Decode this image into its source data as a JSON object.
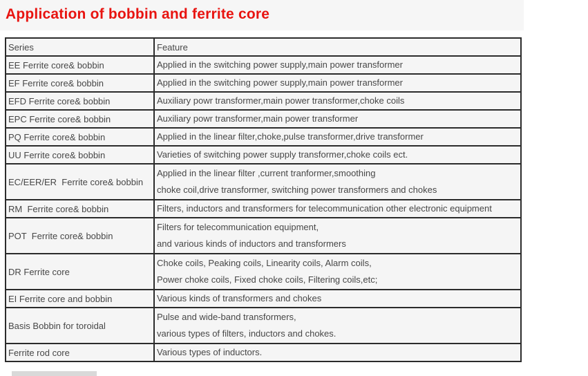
{
  "title": "Application of bobbin and ferrite core",
  "colors": {
    "title_red": "#e81410",
    "table_border": "#2b2b2b",
    "cell_background": "#f5f5f5",
    "text_gray": "#474747",
    "title_band_background": "#f6f6f6",
    "bottom_bar_gray": "#d9d9d9"
  },
  "table": {
    "headers": [
      "Series",
      "Feature"
    ],
    "rows": [
      {
        "series": "EE Ferrite core& bobbin",
        "feature": [
          "Applied in the switching power supply,main power transformer"
        ]
      },
      {
        "series": "EF Ferrite core& bobbin",
        "feature": [
          "Applied in the switching power supply,main power transformer"
        ]
      },
      {
        "series": "EFD Ferrite core& bobbin",
        "feature": [
          "Auxiliary powr transformer,main power transformer,choke coils"
        ]
      },
      {
        "series": "EPC Ferrite core& bobbin",
        "feature": [
          "Auxiliary powr transformer,main power transformer"
        ]
      },
      {
        "series": "PQ Ferrite core& bobbin",
        "feature": [
          "Applied in the linear filter,choke,pulse transformer,drive transformer"
        ]
      },
      {
        "series": "UU Ferrite core& bobbin",
        "feature": [
          "Varieties of switching power supply transformer,choke coils ect."
        ]
      },
      {
        "series": "EC/EER/ER  Ferrite core& bobbin",
        "feature": [
          "Applied in the linear filter ,current tranformer,smoothing",
          "choke coil,drive transformer, switching power transformers and chokes"
        ]
      },
      {
        "series": "RM  Ferrite core& bobbin",
        "feature": [
          "Filters, inductors and transformers for telecommunication other electronic equipment"
        ]
      },
      {
        "series": "POT  Ferrite core& bobbin",
        "feature": [
          "Filters for telecommunication equipment,",
          "and various kinds of inductors and transformers"
        ]
      },
      {
        "series": "DR Ferrite core",
        "feature": [
          "Choke coils, Peaking coils, Linearity coils, Alarm coils,",
          "Power choke coils, Fixed choke coils, Filtering coils,etc;"
        ]
      },
      {
        "series": "EI Ferrite core and bobbin",
        "feature": [
          "Various kinds of transformers and chokes"
        ]
      },
      {
        "series": "Basis Bobbin for toroidal",
        "feature": [
          "Pulse and wide-band transformers,",
          "various types of filters, inductors and chokes."
        ]
      },
      {
        "series": "Ferrite rod core",
        "feature": [
          "Various types of inductors."
        ]
      }
    ]
  }
}
